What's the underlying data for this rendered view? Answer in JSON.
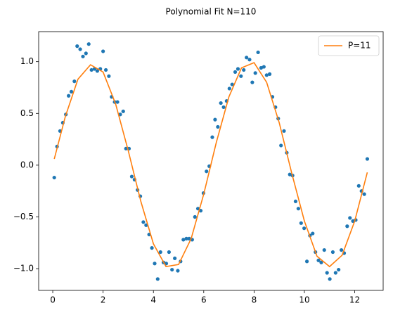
{
  "chart_data": {
    "type": "scatter",
    "title": "Polynomial Fit N=110",
    "xlim": [
      -0.56,
      13.13
    ],
    "ylim": [
      -1.21,
      1.29
    ],
    "xticks": [
      0,
      2,
      4,
      6,
      8,
      10,
      12
    ],
    "yticks": [
      {
        "value": -1,
        "label": "−1.0"
      },
      {
        "value": -0.5,
        "label": "−0.5"
      },
      {
        "value": 0,
        "label": "0.0"
      },
      {
        "value": 0.5,
        "label": "0.5"
      },
      {
        "value": 1,
        "label": "1.0"
      }
    ],
    "legend": "upper right",
    "series": [
      {
        "type": "scatter",
        "color": "#1f77b4",
        "x": [
          0.06,
          0.17,
          0.29,
          0.4,
          0.52,
          0.63,
          0.74,
          0.86,
          0.97,
          1.09,
          1.2,
          1.32,
          1.43,
          1.54,
          1.66,
          1.77,
          1.89,
          2.0,
          2.11,
          2.23,
          2.34,
          2.46,
          2.57,
          2.68,
          2.8,
          2.91,
          3.03,
          3.14,
          3.25,
          3.37,
          3.48,
          3.6,
          3.71,
          3.83,
          3.94,
          4.05,
          4.17,
          4.28,
          4.4,
          4.51,
          4.62,
          4.74,
          4.85,
          4.97,
          5.08,
          5.19,
          5.31,
          5.42,
          5.54,
          5.65,
          5.77,
          5.88,
          5.99,
          6.11,
          6.22,
          6.34,
          6.45,
          6.56,
          6.68,
          6.79,
          6.91,
          7.02,
          7.13,
          7.25,
          7.36,
          7.48,
          7.59,
          7.7,
          7.82,
          7.93,
          8.05,
          8.16,
          8.28,
          8.39,
          8.5,
          8.62,
          8.73,
          8.85,
          8.96,
          9.07,
          9.19,
          9.3,
          9.42,
          9.53,
          9.65,
          9.76,
          9.87,
          9.99,
          10.1,
          10.22,
          10.33,
          10.44,
          10.56,
          10.67,
          10.79,
          10.9,
          11.01,
          11.13,
          11.24,
          11.36,
          11.47,
          11.58,
          11.7,
          11.81,
          11.93,
          12.04,
          12.16,
          12.27,
          12.38,
          12.5
        ],
        "values": [
          -0.12,
          0.18,
          0.33,
          0.41,
          0.49,
          0.67,
          0.71,
          0.81,
          1.15,
          1.12,
          1.05,
          1.08,
          1.17,
          0.92,
          0.93,
          0.91,
          0.93,
          1.1,
          0.92,
          0.86,
          0.66,
          0.61,
          0.61,
          0.49,
          0.52,
          0.16,
          0.16,
          -0.11,
          -0.14,
          -0.24,
          -0.3,
          -0.55,
          -0.58,
          -0.67,
          -0.8,
          -0.95,
          -1.1,
          -0.84,
          -0.94,
          -0.95,
          -0.84,
          -1.01,
          -0.9,
          -1.02,
          -0.93,
          -0.72,
          -0.71,
          -0.71,
          -0.72,
          -0.5,
          -0.42,
          -0.44,
          -0.27,
          -0.06,
          -0.01,
          0.27,
          0.44,
          0.37,
          0.6,
          0.56,
          0.62,
          0.74,
          0.78,
          0.9,
          0.93,
          0.86,
          0.92,
          1.04,
          1.02,
          0.8,
          0.89,
          1.09,
          0.94,
          0.95,
          0.87,
          0.88,
          0.66,
          0.56,
          0.45,
          0.19,
          0.33,
          0.12,
          -0.09,
          -0.1,
          -0.35,
          -0.42,
          -0.56,
          -0.61,
          -0.93,
          -0.68,
          -0.66,
          -0.84,
          -0.92,
          -0.94,
          -0.82,
          -1.04,
          -1.1,
          -0.84,
          -1.04,
          -1.01,
          -0.82,
          -0.85,
          -0.59,
          -0.51,
          -0.54,
          -0.53,
          -0.2,
          -0.25,
          -0.28,
          0.06
        ]
      },
      {
        "type": "line",
        "name": "P=11",
        "color": "#ff7f0e",
        "x": [
          0.06,
          0.5,
          1.0,
          1.5,
          2.0,
          2.5,
          3.0,
          3.5,
          4.0,
          4.5,
          5.0,
          5.5,
          6.0,
          6.5,
          7.0,
          7.5,
          8.0,
          8.5,
          9.0,
          9.5,
          10.0,
          10.5,
          11.0,
          11.5,
          12.0,
          12.5
        ],
        "values": [
          0.06,
          0.47,
          0.83,
          0.97,
          0.9,
          0.59,
          0.14,
          -0.35,
          -0.76,
          -0.98,
          -0.96,
          -0.71,
          -0.28,
          0.22,
          0.66,
          0.94,
          0.99,
          0.8,
          0.41,
          -0.08,
          -0.54,
          -0.88,
          -0.98,
          -0.87,
          -0.54,
          -0.07
        ]
      }
    ]
  }
}
